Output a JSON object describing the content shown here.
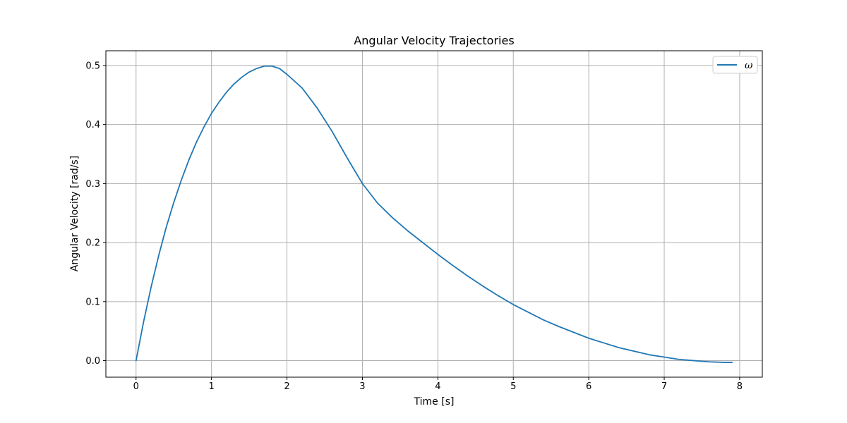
{
  "chart_data": {
    "type": "line",
    "title": "Angular Velocity Trajectories",
    "xlabel": "Time [s]",
    "ylabel": "Angular Velocity [rad/s]",
    "xlim": [
      -0.4,
      8.3
    ],
    "ylim": [
      -0.028,
      0.525
    ],
    "x_ticks": [
      0,
      1,
      2,
      3,
      4,
      5,
      6,
      7,
      8
    ],
    "y_ticks": [
      0.0,
      0.1,
      0.2,
      0.3,
      0.4,
      0.5
    ],
    "x_tick_labels": [
      "0",
      "1",
      "2",
      "3",
      "4",
      "5",
      "6",
      "7",
      "8"
    ],
    "y_tick_labels": [
      "0.0",
      "0.1",
      "0.2",
      "0.3",
      "0.4",
      "0.5"
    ],
    "grid": true,
    "legend_position": "top-right",
    "series": [
      {
        "name": "ω",
        "color": "#1f77b4",
        "x": [
          0,
          0.1,
          0.2,
          0.3,
          0.4,
          0.5,
          0.6,
          0.7,
          0.8,
          0.9,
          1.0,
          1.1,
          1.2,
          1.3,
          1.4,
          1.5,
          1.6,
          1.7,
          1.8,
          1.9,
          2.0,
          2.2,
          2.4,
          2.6,
          2.8,
          3.0,
          3.2,
          3.4,
          3.6,
          3.8,
          4.0,
          4.2,
          4.4,
          4.6,
          4.8,
          5.0,
          5.2,
          5.4,
          5.6,
          5.8,
          6.0,
          6.2,
          6.4,
          6.6,
          6.8,
          7.0,
          7.2,
          7.4,
          7.6,
          7.8,
          7.9
        ],
        "y": [
          0.0,
          0.066,
          0.125,
          0.178,
          0.226,
          0.268,
          0.306,
          0.34,
          0.37,
          0.396,
          0.419,
          0.438,
          0.455,
          0.469,
          0.48,
          0.489,
          0.495,
          0.499,
          0.499,
          0.495,
          0.485,
          0.462,
          0.428,
          0.388,
          0.343,
          0.3,
          0.267,
          0.242,
          0.22,
          0.2,
          0.18,
          0.161,
          0.143,
          0.126,
          0.11,
          0.095,
          0.082,
          0.069,
          0.058,
          0.048,
          0.038,
          0.03,
          0.022,
          0.016,
          0.01,
          0.006,
          0.002,
          0.0,
          -0.002,
          -0.003,
          -0.003
        ]
      }
    ]
  }
}
